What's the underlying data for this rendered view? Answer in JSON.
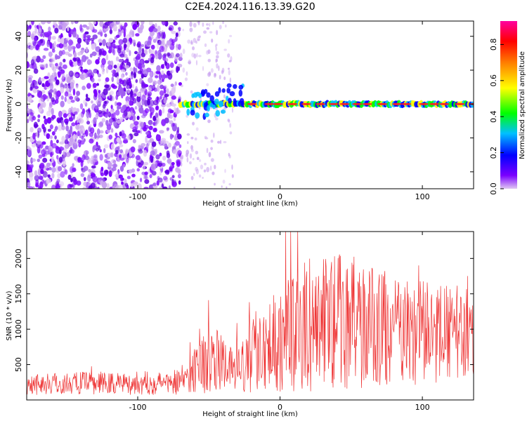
{
  "figure": {
    "title": "C2E4.2024.116.13.39.G20"
  },
  "chart_data": [
    {
      "type": "heatmap",
      "xlabel": "Height of straight line (km)",
      "ylabel": "Frequency (Hz)",
      "xlim": [
        -178,
        136
      ],
      "ylim": [
        -50,
        49
      ],
      "x_ticks": [
        -100,
        0,
        100
      ],
      "y_ticks": [
        -40,
        -20,
        0,
        20,
        40
      ],
      "noise_region_x": [
        -178,
        -70
      ],
      "sparse_noise_region_x": [
        -70,
        -33
      ],
      "tone_frequency_hz": 0,
      "tone_start_x": -70,
      "colorbar": {
        "label": "Normalized spectral amplitude",
        "range": [
          0,
          0.93
        ],
        "ticks": [
          0.0,
          0.2,
          0.4,
          0.6,
          0.8
        ],
        "colormap": [
          "#e0c8f2",
          "#7a00ff",
          "#0000ff",
          "#00c0ff",
          "#00ff00",
          "#ffff00",
          "#ff8000",
          "#ff0000",
          "#ff00a0"
        ]
      }
    },
    {
      "type": "line",
      "xlabel": "Height of straight line (km)",
      "ylabel": "SNR (10 * v/v)",
      "xlim": [
        -178,
        136
      ],
      "ylim": [
        0,
        2380
      ],
      "x_ticks": [
        -100,
        0,
        100
      ],
      "y_ticks": [
        500,
        1000,
        1500,
        2000
      ],
      "line_color": "#ee3333",
      "envelope": [
        {
          "x": -178,
          "base": 230,
          "spread": 160
        },
        {
          "x": -80,
          "base": 240,
          "spread": 170
        },
        {
          "x": -66,
          "base": 300,
          "spread": 220
        },
        {
          "x": -58,
          "base": 500,
          "spread": 420
        },
        {
          "x": -45,
          "base": 560,
          "spread": 450
        },
        {
          "x": -33,
          "base": 420,
          "spread": 280
        },
        {
          "x": -24,
          "base": 480,
          "spread": 420
        },
        {
          "x": -15,
          "base": 800,
          "spread": 650
        },
        {
          "x": 0,
          "base": 850,
          "spread": 750
        },
        {
          "x": 20,
          "base": 1050,
          "spread": 950
        },
        {
          "x": 40,
          "base": 1150,
          "spread": 1000
        },
        {
          "x": 60,
          "base": 1050,
          "spread": 900
        },
        {
          "x": 90,
          "base": 950,
          "spread": 750
        },
        {
          "x": 136,
          "base": 950,
          "spread": 650
        }
      ],
      "peak_max": 2380
    }
  ]
}
